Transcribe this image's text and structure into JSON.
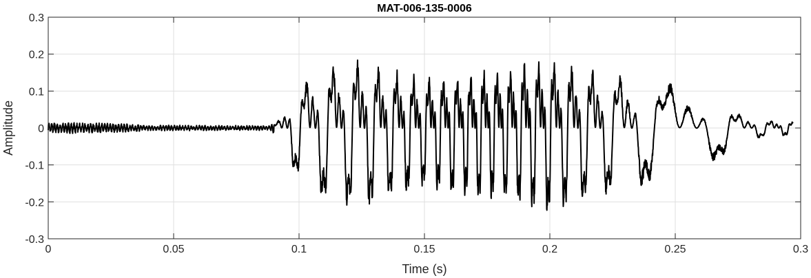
{
  "chart_data": {
    "type": "line",
    "title": "MAT-006-135-0006",
    "xlabel": "Time (s)",
    "ylabel": "Amplitude",
    "xlim": [
      0,
      0.3
    ],
    "ylim": [
      -0.3,
      0.3
    ],
    "grid": true,
    "xticks": [
      0,
      0.05,
      0.1,
      0.15,
      0.2,
      0.25,
      0.3
    ],
    "xtick_labels": [
      "0",
      "0.05",
      "0.1",
      "0.15",
      "0.2",
      "0.25",
      "0.3"
    ],
    "yticks": [
      -0.3,
      -0.2,
      -0.1,
      0,
      0.1,
      0.2,
      0.3
    ],
    "ytick_labels": [
      "-0.3",
      "-0.2",
      "-0.1",
      "0",
      "0.1",
      "0.2",
      "0.3"
    ],
    "series_color": "#000000",
    "series": [
      {
        "x_start": 0,
        "x_end": 0.297,
        "envelope": [
          [
            0,
            0.02
          ],
          [
            0.03,
            0.015
          ],
          [
            0.04,
            0.01
          ],
          [
            0.088,
            0.008
          ],
          [
            0.092,
            0.03
          ],
          [
            0.096,
            0.12
          ],
          [
            0.1,
            0.16
          ],
          [
            0.104,
            0.2
          ],
          [
            0.11,
            0.24
          ],
          [
            0.12,
            0.26
          ],
          [
            0.126,
            0.27
          ],
          [
            0.135,
            0.23
          ],
          [
            0.15,
            0.2
          ],
          [
            0.17,
            0.23
          ],
          [
            0.19,
            0.26
          ],
          [
            0.2,
            0.28
          ],
          [
            0.21,
            0.25
          ],
          [
            0.23,
            0.2
          ],
          [
            0.25,
            0.17
          ],
          [
            0.26,
            0.13
          ],
          [
            0.27,
            0.09
          ],
          [
            0.276,
            0.05
          ],
          [
            0.285,
            0.03
          ],
          [
            0.297,
            0.025
          ]
        ]
      }
    ]
  }
}
